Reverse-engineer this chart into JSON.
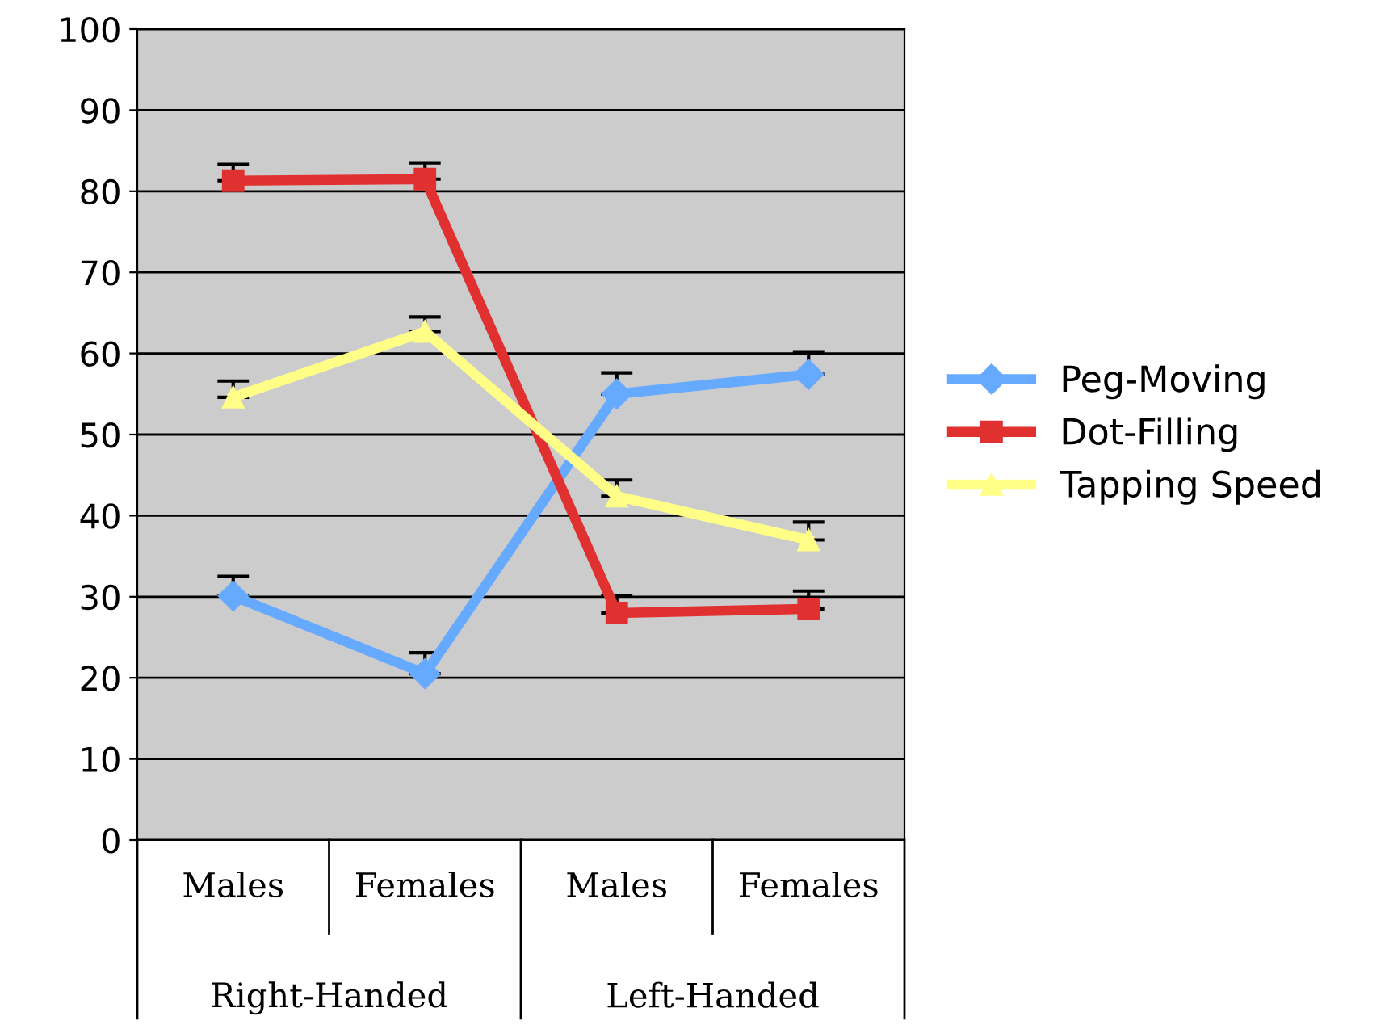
{
  "chart_data": {
    "type": "line",
    "categories": [
      "Males",
      "Females",
      "Males",
      "Females"
    ],
    "annotations": [
      "Right-Handed",
      "Left-Handed"
    ],
    "series": [
      {
        "name": "Peg-Moving",
        "color": "#66aaff",
        "marker": "diamond",
        "values": [
          30.1,
          20.5,
          55,
          57.4
        ],
        "errors": [
          [
            30.1,
            32.5
          ],
          [
            20.5,
            23.1
          ],
          [
            55,
            57.6
          ],
          [
            57.4,
            60.2
          ]
        ]
      },
      {
        "name": "Dot-Filling",
        "color": "#e03030",
        "marker": "square",
        "values": [
          81.3,
          81.5,
          28,
          28.5
        ],
        "errors": [
          [
            81.3,
            83.3
          ],
          [
            81.5,
            83.5
          ],
          [
            28,
            30.1
          ],
          [
            28.5,
            30.7
          ]
        ]
      },
      {
        "name": "Tapping Speed",
        "color": "#ffff88",
        "marker": "triangle",
        "values": [
          54.6,
          62.7,
          42.4,
          37
        ],
        "errors": [
          [
            54.6,
            56.6
          ],
          [
            62.7,
            64.5
          ],
          [
            42.4,
            44.4
          ],
          [
            37,
            39.2
          ]
        ]
      }
    ],
    "ylim": [
      0,
      100
    ],
    "yticks": [
      0,
      10,
      20,
      30,
      40,
      50,
      60,
      70,
      80,
      90,
      100
    ],
    "grid": "y",
    "legend": "right"
  }
}
